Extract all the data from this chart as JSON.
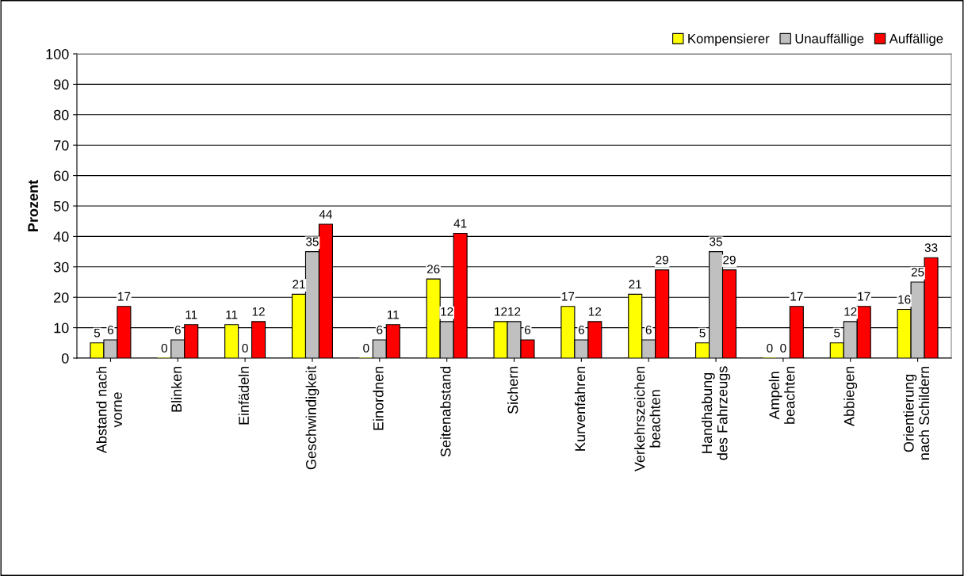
{
  "chart_data": {
    "type": "bar",
    "ylabel": "Prozent",
    "categories": [
      "Abstand nach\nvorne",
      "Blinken",
      "Einfädeln",
      "Geschwindigkeit",
      "Einordnen",
      "Seitenabstand",
      "Sichern",
      "Kurvenfahren",
      "Verkehrszeichen\nbeachten",
      "Handhabung\ndes Fahrzeugs",
      "Ampeln\nbeachten",
      "Abbiegen",
      "Orientierung\nnach Schildern"
    ],
    "series": [
      {
        "name": "Kompensierer",
        "color": "#ffff00",
        "values": [
          5,
          0,
          11,
          21,
          0,
          26,
          12,
          17,
          21,
          5,
          0,
          5,
          16
        ]
      },
      {
        "name": "Unauffällige",
        "color": "#c0c0c0",
        "values": [
          6,
          6,
          0,
          35,
          6,
          12,
          12,
          6,
          6,
          35,
          0,
          12,
          25
        ]
      },
      {
        "name": "Auffällige",
        "color": "#ff0000",
        "values": [
          17,
          11,
          12,
          44,
          11,
          41,
          6,
          12,
          29,
          29,
          17,
          17,
          33
        ]
      }
    ],
    "ylim": [
      0,
      100
    ],
    "yticks": [
      0,
      10,
      20,
      30,
      40,
      50,
      60,
      70,
      80,
      90,
      100
    ],
    "grid": "y",
    "legend": "top right",
    "data_labels": true
  }
}
